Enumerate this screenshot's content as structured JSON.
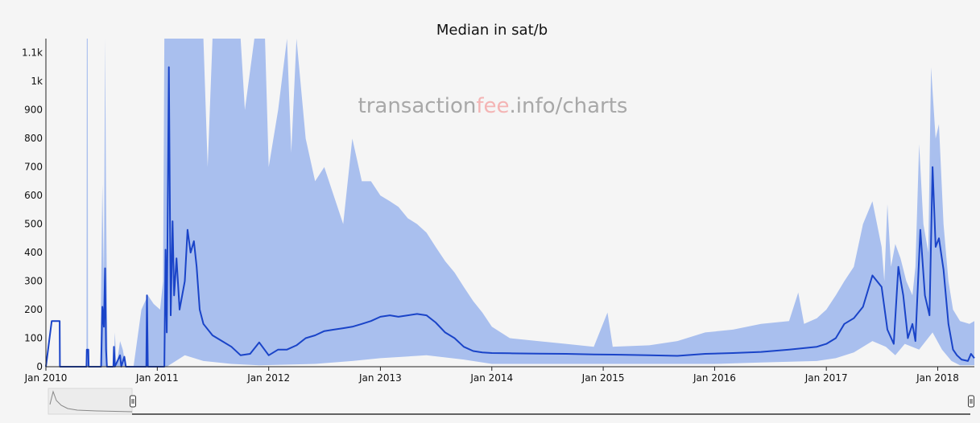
{
  "chart_data": {
    "type": "area",
    "title": "Median in sat/b",
    "watermark": {
      "prefix": "transaction",
      "highlight": "fee",
      "suffix": ".info/charts"
    },
    "xlabel": "",
    "ylabel": "",
    "x_tick_labels": [
      "Jan 2010",
      "Jan 2011",
      "Jan 2012",
      "Jan 2013",
      "Jan 2014",
      "Jan 2015",
      "Jan 2016",
      "Jan 2017",
      "Jan 2018"
    ],
    "y_ticks": [
      {
        "value": 0,
        "label": "0"
      },
      {
        "value": 100,
        "label": "100"
      },
      {
        "value": 200,
        "label": "200"
      },
      {
        "value": 300,
        "label": "300"
      },
      {
        "value": 400,
        "label": "400"
      },
      {
        "value": 500,
        "label": "500"
      },
      {
        "value": 600,
        "label": "600"
      },
      {
        "value": 700,
        "label": "700"
      },
      {
        "value": 800,
        "label": "800"
      },
      {
        "value": 900,
        "label": "900"
      },
      {
        "value": 1000,
        "label": "1k"
      },
      {
        "value": 1100,
        "label": "1.1k"
      }
    ],
    "xlim": [
      "2010-01-01",
      "2018-05-01"
    ],
    "ylim": [
      0,
      1150
    ],
    "grid": false,
    "colors": {
      "median_line": "#1a44c8",
      "range_band": "#a9bfee",
      "background": "#f5f5f5"
    },
    "series": [
      {
        "role": "median",
        "points": [
          [
            "2010-01-01",
            0
          ],
          [
            "2010-01-20",
            160
          ],
          [
            "2010-02-15",
            160
          ],
          [
            "2010-02-16",
            0
          ],
          [
            "2010-05-14",
            0
          ],
          [
            "2010-05-15",
            60
          ],
          [
            "2010-05-20",
            60
          ],
          [
            "2010-05-21",
            0
          ],
          [
            "2010-07-01",
            0
          ],
          [
            "2010-07-05",
            210
          ],
          [
            "2010-07-10",
            140
          ],
          [
            "2010-07-14",
            345
          ],
          [
            "2010-07-17",
            60
          ],
          [
            "2010-07-20",
            0
          ],
          [
            "2010-08-10",
            0
          ],
          [
            "2010-08-12",
            70
          ],
          [
            "2010-08-15",
            0
          ],
          [
            "2010-09-01",
            40
          ],
          [
            "2010-09-05",
            0
          ],
          [
            "2010-09-15",
            35
          ],
          [
            "2010-09-20",
            0
          ],
          [
            "2010-11-26",
            0
          ],
          [
            "2010-11-28",
            250
          ],
          [
            "2010-12-01",
            0
          ],
          [
            "2010-12-28",
            0
          ],
          [
            "2011-01-10",
            0
          ],
          [
            "2011-01-24",
            0
          ],
          [
            "2011-01-28",
            410
          ],
          [
            "2011-02-01",
            120
          ],
          [
            "2011-02-08",
            1050
          ],
          [
            "2011-02-14",
            180
          ],
          [
            "2011-02-20",
            510
          ],
          [
            "2011-02-25",
            250
          ],
          [
            "2011-03-05",
            380
          ],
          [
            "2011-03-15",
            200
          ],
          [
            "2011-04-01",
            300
          ],
          [
            "2011-04-10",
            480
          ],
          [
            "2011-04-20",
            400
          ],
          [
            "2011-05-01",
            440
          ],
          [
            "2011-05-10",
            350
          ],
          [
            "2011-05-20",
            200
          ],
          [
            "2011-06-01",
            150
          ],
          [
            "2011-07-01",
            110
          ],
          [
            "2011-08-01",
            90
          ],
          [
            "2011-09-01",
            70
          ],
          [
            "2011-10-01",
            40
          ],
          [
            "2011-11-01",
            45
          ],
          [
            "2011-12-01",
            85
          ],
          [
            "2012-01-01",
            40
          ],
          [
            "2012-02-01",
            60
          ],
          [
            "2012-03-01",
            60
          ],
          [
            "2012-04-01",
            75
          ],
          [
            "2012-05-01",
            100
          ],
          [
            "2012-06-01",
            110
          ],
          [
            "2012-07-01",
            125
          ],
          [
            "2012-08-01",
            130
          ],
          [
            "2012-09-01",
            135
          ],
          [
            "2012-10-01",
            140
          ],
          [
            "2012-11-01",
            150
          ],
          [
            "2012-12-01",
            160
          ],
          [
            "2013-01-01",
            175
          ],
          [
            "2013-02-01",
            180
          ],
          [
            "2013-03-01",
            175
          ],
          [
            "2013-04-01",
            180
          ],
          [
            "2013-05-01",
            185
          ],
          [
            "2013-06-01",
            180
          ],
          [
            "2013-07-01",
            155
          ],
          [
            "2013-08-01",
            120
          ],
          [
            "2013-09-01",
            100
          ],
          [
            "2013-10-01",
            70
          ],
          [
            "2013-11-01",
            55
          ],
          [
            "2013-12-01",
            50
          ],
          [
            "2014-01-01",
            48
          ],
          [
            "2014-03-01",
            47
          ],
          [
            "2014-06-01",
            46
          ],
          [
            "2014-09-01",
            45
          ],
          [
            "2014-12-01",
            43
          ],
          [
            "2015-03-01",
            42
          ],
          [
            "2015-06-01",
            40
          ],
          [
            "2015-09-01",
            38
          ],
          [
            "2015-12-01",
            45
          ],
          [
            "2016-03-01",
            48
          ],
          [
            "2016-06-01",
            52
          ],
          [
            "2016-09-01",
            60
          ],
          [
            "2016-12-01",
            70
          ],
          [
            "2017-01-01",
            80
          ],
          [
            "2017-02-01",
            100
          ],
          [
            "2017-03-01",
            150
          ],
          [
            "2017-04-01",
            170
          ],
          [
            "2017-05-01",
            210
          ],
          [
            "2017-06-01",
            320
          ],
          [
            "2017-07-01",
            280
          ],
          [
            "2017-07-20",
            130
          ],
          [
            "2017-08-10",
            80
          ],
          [
            "2017-08-25",
            350
          ],
          [
            "2017-09-10",
            250
          ],
          [
            "2017-09-25",
            100
          ],
          [
            "2017-10-10",
            150
          ],
          [
            "2017-10-20",
            90
          ],
          [
            "2017-11-05",
            480
          ],
          [
            "2017-11-20",
            250
          ],
          [
            "2017-12-05",
            180
          ],
          [
            "2017-12-15",
            700
          ],
          [
            "2017-12-25",
            420
          ],
          [
            "2018-01-05",
            450
          ],
          [
            "2018-01-20",
            340
          ],
          [
            "2018-02-05",
            150
          ],
          [
            "2018-02-20",
            60
          ],
          [
            "2018-03-05",
            40
          ],
          [
            "2018-03-20",
            25
          ],
          [
            "2018-04-10",
            20
          ],
          [
            "2018-04-20",
            45
          ],
          [
            "2018-05-01",
            30
          ]
        ]
      },
      {
        "role": "range",
        "upper": [
          [
            "2010-01-01",
            0
          ],
          [
            "2010-05-14",
            0
          ],
          [
            "2010-05-15",
            1150
          ],
          [
            "2010-05-18",
            1150
          ],
          [
            "2010-05-19",
            0
          ],
          [
            "2010-06-28",
            0
          ],
          [
            "2010-07-05",
            640
          ],
          [
            "2010-07-10",
            300
          ],
          [
            "2010-07-14",
            1150
          ],
          [
            "2010-07-17",
            600
          ],
          [
            "2010-07-22",
            0
          ],
          [
            "2010-08-10",
            0
          ],
          [
            "2010-08-15",
            120
          ],
          [
            "2010-08-20",
            0
          ],
          [
            "2010-09-01",
            90
          ],
          [
            "2010-09-10",
            60
          ],
          [
            "2010-09-20",
            0
          ],
          [
            "2010-10-15",
            0
          ],
          [
            "2010-11-10",
            200
          ],
          [
            "2010-12-01",
            250
          ],
          [
            "2010-12-20",
            220
          ],
          [
            "2011-01-10",
            200
          ],
          [
            "2011-01-20",
            300
          ],
          [
            "2011-01-24",
            1150
          ],
          [
            "2011-06-01",
            1150
          ],
          [
            "2011-06-15",
            700
          ],
          [
            "2011-07-01",
            1150
          ],
          [
            "2011-10-01",
            1150
          ],
          [
            "2011-10-15",
            900
          ],
          [
            "2011-11-15",
            1150
          ],
          [
            "2011-12-20",
            1150
          ],
          [
            "2012-01-01",
            700
          ],
          [
            "2012-02-01",
            900
          ],
          [
            "2012-03-01",
            1150
          ],
          [
            "2012-03-15",
            750
          ],
          [
            "2012-04-01",
            1150
          ],
          [
            "2012-05-01",
            800
          ],
          [
            "2012-06-01",
            650
          ],
          [
            "2012-07-01",
            700
          ],
          [
            "2012-08-01",
            600
          ],
          [
            "2012-09-01",
            500
          ],
          [
            "2012-10-01",
            800
          ],
          [
            "2012-11-01",
            650
          ],
          [
            "2012-12-01",
            650
          ],
          [
            "2013-01-01",
            600
          ],
          [
            "2013-02-01",
            580
          ],
          [
            "2013-03-01",
            560
          ],
          [
            "2013-04-01",
            520
          ],
          [
            "2013-05-01",
            500
          ],
          [
            "2013-06-01",
            470
          ],
          [
            "2013-07-01",
            420
          ],
          [
            "2013-08-01",
            370
          ],
          [
            "2013-09-01",
            330
          ],
          [
            "2013-10-01",
            280
          ],
          [
            "2013-11-01",
            230
          ],
          [
            "2013-12-01",
            190
          ],
          [
            "2014-01-01",
            140
          ],
          [
            "2014-03-01",
            100
          ],
          [
            "2014-06-01",
            90
          ],
          [
            "2014-09-01",
            80
          ],
          [
            "2014-12-01",
            70
          ],
          [
            "2015-01-15",
            190
          ],
          [
            "2015-02-01",
            70
          ],
          [
            "2015-06-01",
            75
          ],
          [
            "2015-09-01",
            90
          ],
          [
            "2015-12-01",
            120
          ],
          [
            "2016-03-01",
            130
          ],
          [
            "2016-06-01",
            150
          ],
          [
            "2016-09-01",
            160
          ],
          [
            "2016-10-01",
            260
          ],
          [
            "2016-10-20",
            150
          ],
          [
            "2016-12-01",
            170
          ],
          [
            "2017-01-01",
            200
          ],
          [
            "2017-02-01",
            250
          ],
          [
            "2017-03-01",
            300
          ],
          [
            "2017-04-01",
            350
          ],
          [
            "2017-05-01",
            500
          ],
          [
            "2017-06-01",
            580
          ],
          [
            "2017-07-01",
            420
          ],
          [
            "2017-07-10",
            300
          ],
          [
            "2017-07-20",
            570
          ],
          [
            "2017-08-01",
            350
          ],
          [
            "2017-08-15",
            430
          ],
          [
            "2017-09-01",
            380
          ],
          [
            "2017-09-20",
            300
          ],
          [
            "2017-10-10",
            250
          ],
          [
            "2017-10-20",
            350
          ],
          [
            "2017-11-01",
            780
          ],
          [
            "2017-11-15",
            500
          ],
          [
            "2017-12-01",
            400
          ],
          [
            "2017-12-10",
            1050
          ],
          [
            "2017-12-25",
            800
          ],
          [
            "2018-01-05",
            850
          ],
          [
            "2018-01-20",
            500
          ],
          [
            "2018-02-05",
            300
          ],
          [
            "2018-02-20",
            200
          ],
          [
            "2018-03-15",
            160
          ],
          [
            "2018-04-15",
            150
          ],
          [
            "2018-05-01",
            160
          ]
        ],
        "lower": [
          [
            "2010-01-01",
            0
          ],
          [
            "2011-02-01",
            0
          ],
          [
            "2011-04-01",
            40
          ],
          [
            "2011-06-01",
            20
          ],
          [
            "2011-09-01",
            10
          ],
          [
            "2011-12-01",
            5
          ],
          [
            "2012-06-01",
            10
          ],
          [
            "2012-10-01",
            20
          ],
          [
            "2013-01-01",
            30
          ],
          [
            "2013-06-01",
            40
          ],
          [
            "2013-10-01",
            25
          ],
          [
            "2014-01-01",
            10
          ],
          [
            "2016-01-01",
            10
          ],
          [
            "2016-06-01",
            15
          ],
          [
            "2016-12-01",
            20
          ],
          [
            "2017-02-01",
            30
          ],
          [
            "2017-04-01",
            50
          ],
          [
            "2017-06-01",
            90
          ],
          [
            "2017-07-15",
            70
          ],
          [
            "2017-08-15",
            40
          ],
          [
            "2017-09-15",
            80
          ],
          [
            "2017-11-01",
            60
          ],
          [
            "2017-12-15",
            120
          ],
          [
            "2018-01-15",
            60
          ],
          [
            "2018-02-15",
            20
          ],
          [
            "2018-03-15",
            5
          ],
          [
            "2018-05-01",
            5
          ]
        ]
      }
    ]
  }
}
